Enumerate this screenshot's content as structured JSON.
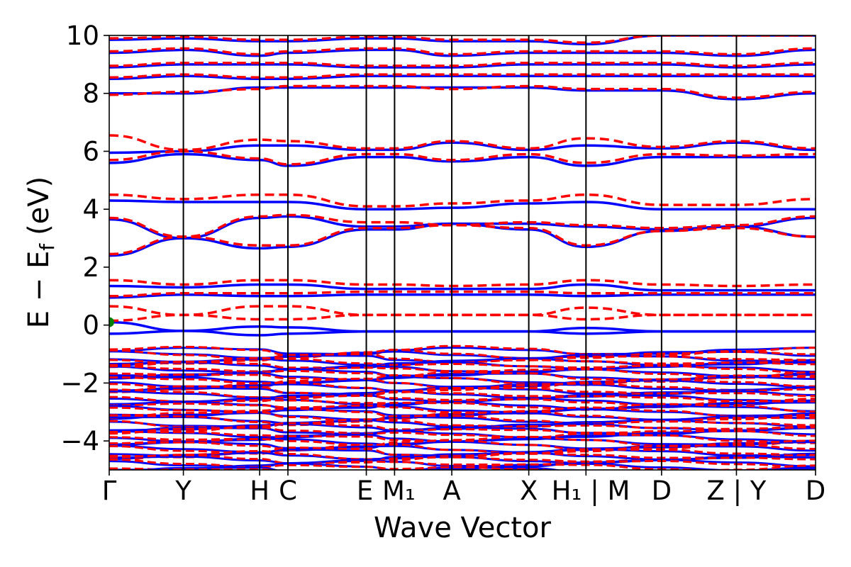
{
  "chart_data": {
    "type": "line",
    "xlabel": "Wave Vector",
    "ylabel": "E − E",
    "ylabel_subscript": "f",
    "ylabel_unit": "(eV)",
    "ylim": [
      -5,
      10
    ],
    "yticks": [
      -4,
      -2,
      0,
      2,
      4,
      6,
      8,
      10
    ],
    "ytick_labels": [
      "−4",
      "−2",
      "0",
      "2",
      "4",
      "6",
      "8",
      "10"
    ],
    "kpath": [
      {
        "label": "Γ",
        "x": 0.0
      },
      {
        "label": "Y",
        "x": 0.105
      },
      {
        "label": "H",
        "x": 0.213
      },
      {
        "label": "C",
        "x": 0.253
      },
      {
        "label": "E",
        "x": 0.364
      },
      {
        "label": "M₁",
        "x": 0.404
      },
      {
        "label": "A",
        "x": 0.485
      },
      {
        "label": "X",
        "x": 0.594
      },
      {
        "label": "H₁",
        "x": 0.675
      },
      {
        "label": "| M",
        "x": 0.675
      },
      {
        "label": "D",
        "x": 0.782
      },
      {
        "label": "Z | Y",
        "x": 0.888
      },
      {
        "label": "D",
        "x": 1.0
      }
    ],
    "xlim": [
      0.0,
      1.0
    ],
    "series": [
      {
        "color": "#0000ff",
        "style": "solid",
        "width": 3.5,
        "bands_sampled": [
          [
            -0.3,
            -0.2,
            -0.35,
            -0.3,
            -0.22,
            -0.22,
            -0.22,
            -0.22,
            -0.3,
            -0.22,
            -0.22,
            -0.22,
            -0.22
          ],
          [
            0.1,
            -0.2,
            -0.05,
            -0.08,
            -0.22,
            -0.22,
            -0.22,
            -0.22,
            -0.1,
            -0.22,
            -0.22,
            -0.22,
            -0.22
          ],
          [
            0.95,
            1.05,
            1.0,
            1.0,
            1.05,
            1.05,
            1.05,
            1.05,
            1.0,
            1.05,
            1.05,
            1.05,
            1.05
          ],
          [
            1.35,
            1.3,
            1.4,
            1.4,
            1.25,
            1.25,
            1.25,
            1.25,
            1.4,
            1.2,
            1.2,
            1.2,
            1.2
          ],
          [
            2.4,
            3.0,
            2.65,
            2.7,
            3.3,
            3.3,
            3.5,
            3.3,
            2.7,
            3.25,
            3.4,
            3.05,
            3.4
          ],
          [
            3.65,
            3.0,
            3.7,
            3.75,
            3.4,
            3.4,
            3.5,
            3.5,
            3.4,
            3.3,
            3.4,
            3.7,
            3.5
          ],
          [
            4.3,
            4.25,
            4.25,
            4.25,
            4.0,
            4.0,
            4.05,
            4.2,
            4.25,
            4.0,
            4.0,
            4.0,
            4.0
          ],
          [
            5.6,
            5.9,
            5.7,
            5.5,
            5.8,
            5.8,
            5.65,
            5.8,
            5.5,
            5.8,
            5.8,
            5.8,
            5.8
          ],
          [
            5.95,
            6.0,
            6.2,
            6.2,
            6.05,
            6.05,
            6.3,
            6.05,
            6.2,
            6.1,
            6.3,
            6.05,
            6.3
          ],
          [
            8.0,
            8.0,
            8.2,
            8.2,
            8.2,
            8.2,
            8.2,
            8.2,
            8.1,
            8.1,
            7.8,
            8.0,
            8.2
          ],
          [
            8.5,
            8.6,
            8.5,
            8.5,
            8.6,
            8.6,
            8.6,
            8.6,
            8.6,
            8.6,
            8.6,
            8.6,
            8.5
          ],
          [
            8.9,
            9.0,
            9.0,
            9.0,
            8.9,
            8.9,
            8.9,
            9.0,
            9.0,
            9.0,
            8.9,
            9.0,
            9.0
          ],
          [
            9.4,
            9.5,
            9.3,
            9.4,
            9.5,
            9.5,
            9.3,
            9.4,
            9.4,
            9.4,
            9.3,
            9.5,
            9.6
          ],
          [
            9.85,
            9.9,
            9.8,
            9.8,
            9.9,
            9.9,
            9.8,
            9.8,
            9.7,
            10.0,
            10.0,
            10.0,
            10.0
          ]
        ]
      },
      {
        "color": "#ff0000",
        "style": "dashed",
        "width": 3.5,
        "bands_sampled": [
          [
            0.65,
            0.35,
            0.65,
            0.65,
            0.35,
            0.35,
            0.35,
            0.35,
            0.6,
            0.35,
            0.35,
            0.35,
            0.35
          ],
          [
            0.15,
            0.35,
            0.2,
            0.2,
            0.35,
            0.35,
            0.35,
            0.35,
            0.2,
            0.35,
            0.35,
            0.35,
            0.35
          ],
          [
            1.0,
            1.1,
            1.1,
            1.1,
            1.15,
            1.15,
            1.15,
            1.15,
            1.1,
            1.1,
            1.1,
            1.1,
            1.1
          ],
          [
            1.55,
            1.4,
            1.55,
            1.55,
            1.4,
            1.4,
            1.35,
            1.4,
            1.55,
            1.4,
            1.35,
            1.4,
            1.35
          ],
          [
            2.45,
            3.05,
            2.75,
            2.75,
            3.35,
            3.35,
            3.45,
            3.35,
            2.75,
            3.25,
            3.35,
            3.05,
            3.4
          ],
          [
            3.7,
            3.05,
            3.75,
            3.8,
            3.55,
            3.55,
            3.45,
            3.55,
            3.45,
            3.35,
            3.45,
            3.75,
            3.55
          ],
          [
            4.5,
            4.35,
            4.5,
            4.5,
            4.1,
            4.1,
            4.2,
            4.3,
            4.5,
            4.15,
            4.15,
            4.35,
            4.15
          ],
          [
            5.7,
            6.0,
            5.75,
            5.55,
            5.9,
            5.9,
            5.7,
            5.9,
            5.6,
            5.9,
            5.85,
            5.9,
            5.85
          ],
          [
            6.55,
            6.05,
            6.4,
            6.35,
            6.1,
            6.1,
            6.35,
            6.1,
            6.45,
            6.15,
            6.35,
            6.1,
            6.4
          ],
          [
            7.95,
            8.05,
            8.15,
            8.25,
            8.25,
            8.25,
            8.15,
            8.25,
            8.15,
            8.15,
            7.85,
            8.05,
            8.25
          ],
          [
            8.55,
            8.65,
            8.55,
            8.55,
            8.65,
            8.65,
            8.65,
            8.65,
            8.65,
            8.65,
            8.65,
            8.65,
            8.55
          ],
          [
            8.95,
            9.05,
            9.05,
            9.05,
            8.95,
            8.95,
            8.95,
            9.05,
            9.05,
            9.05,
            8.95,
            9.05,
            9.05
          ],
          [
            9.45,
            9.55,
            9.35,
            9.45,
            9.55,
            9.55,
            9.35,
            9.45,
            9.45,
            9.45,
            9.35,
            9.55,
            9.65
          ],
          [
            9.9,
            9.95,
            9.85,
            9.85,
            9.95,
            9.95,
            9.85,
            9.85,
            9.75,
            10.0,
            10.0,
            10.0,
            10.0
          ]
        ]
      }
    ],
    "valence_manifold": {
      "range": [
        -5,
        -0.75
      ],
      "color_solid": "#0000ff",
      "color_dashed": "#ff0000"
    },
    "marker": {
      "x": 0.0,
      "y": 0.1,
      "color": "#008000"
    },
    "grid": false,
    "legend": "none"
  }
}
